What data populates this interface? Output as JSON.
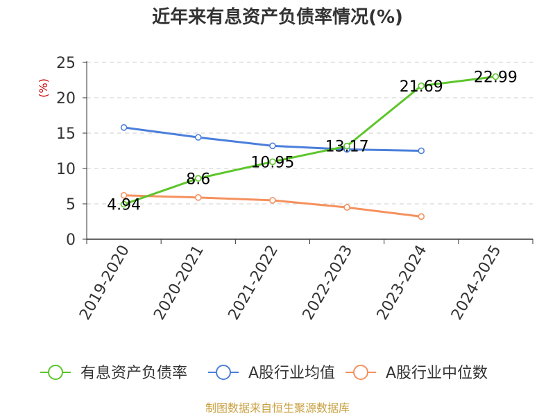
{
  "chart_data": {
    "type": "line",
    "title": "近年来有息资产负债率情况(%)",
    "ylabel": "(%)",
    "ylim": [
      0,
      25
    ],
    "yticks": [
      0,
      5,
      10,
      15,
      20,
      25
    ],
    "categories": [
      "2019-2020",
      "2020-2021",
      "2021-2022",
      "2022-2023",
      "2023-2024",
      "2024-2025"
    ],
    "grid": true,
    "legend_position": "bottom",
    "series": [
      {
        "name": "有息资产负债率",
        "color": "#5cc52a",
        "values": [
          4.94,
          8.6,
          10.95,
          13.17,
          21.69,
          22.99
        ],
        "labels": [
          "4.94",
          "8.6",
          "10.95",
          "13.17",
          "21.69",
          "22.99"
        ]
      },
      {
        "name": "A股行业均值",
        "color": "#4a7fdb",
        "values": [
          15.8,
          14.4,
          13.2,
          12.7,
          12.5,
          null
        ]
      },
      {
        "name": "A股行业中位数",
        "color": "#f5915e",
        "values": [
          6.2,
          5.9,
          5.5,
          4.5,
          3.2,
          null
        ]
      }
    ]
  },
  "source": "制图数据来自恒生聚源数据库"
}
